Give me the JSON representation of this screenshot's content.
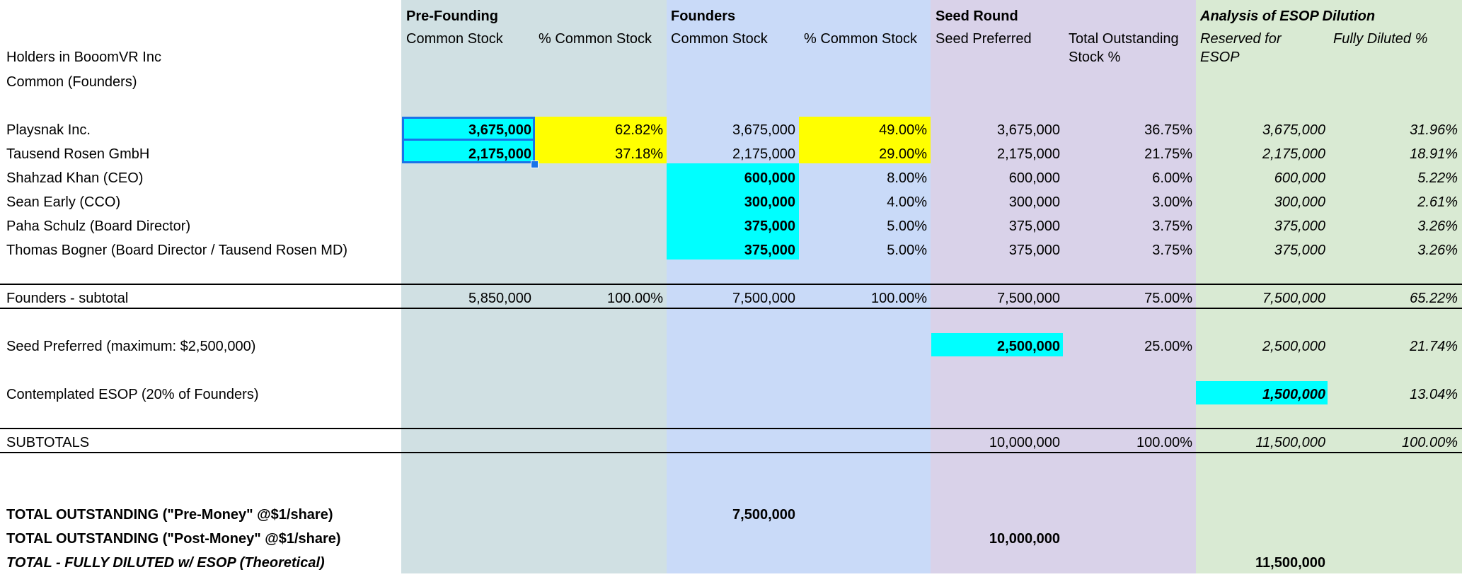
{
  "groups": {
    "pre": "Pre-Founding",
    "founders": "Founders",
    "seed": "Seed Round",
    "esop": "Analysis of ESOP Dilution"
  },
  "subheaders": {
    "pre_stock": "Common Stock",
    "pre_pct": "% Common Stock",
    "fnd_stock": "Common Stock",
    "fnd_pct": "% Common Stock",
    "seed_pref": "Seed Preferred",
    "seed_total_1": "Total Outstanding",
    "seed_total_2": "Stock %",
    "esop_reserved_1": "Reserved for",
    "esop_reserved_2": "ESOP",
    "esop_fd": "Fully Diluted %"
  },
  "labels": {
    "holders": "Holders in BooomVR Inc",
    "common": "Common (Founders)"
  },
  "holders": [
    {
      "name": "Playsnak Inc.",
      "pre_stock": "3,675,000",
      "pre_pct": "62.82%",
      "fnd_stock": "3,675,000",
      "fnd_pct": "49.00%",
      "seed_pref": "3,675,000",
      "seed_total": "36.75%",
      "esop_reserved": "3,675,000",
      "esop_fd": "31.96%"
    },
    {
      "name": "Tausend Rosen GmbH",
      "pre_stock": "2,175,000",
      "pre_pct": "37.18%",
      "fnd_stock": "2,175,000",
      "fnd_pct": "29.00%",
      "seed_pref": "2,175,000",
      "seed_total": "21.75%",
      "esop_reserved": "2,175,000",
      "esop_fd": "18.91%"
    },
    {
      "name": "Shahzad Khan (CEO)",
      "pre_stock": "",
      "pre_pct": "",
      "fnd_stock": "600,000",
      "fnd_pct": "8.00%",
      "seed_pref": "600,000",
      "seed_total": "6.00%",
      "esop_reserved": "600,000",
      "esop_fd": "5.22%"
    },
    {
      "name": "Sean Early (CCO)",
      "pre_stock": "",
      "pre_pct": "",
      "fnd_stock": "300,000",
      "fnd_pct": "4.00%",
      "seed_pref": "300,000",
      "seed_total": "3.00%",
      "esop_reserved": "300,000",
      "esop_fd": "2.61%"
    },
    {
      "name": "Paha Schulz (Board Director)",
      "pre_stock": "",
      "pre_pct": "",
      "fnd_stock": "375,000",
      "fnd_pct": "5.00%",
      "seed_pref": "375,000",
      "seed_total": "3.75%",
      "esop_reserved": "375,000",
      "esop_fd": "3.26%"
    },
    {
      "name": "Thomas Bogner (Board Director / Tausend Rosen MD)",
      "pre_stock": "",
      "pre_pct": "",
      "fnd_stock": "375,000",
      "fnd_pct": "5.00%",
      "seed_pref": "375,000",
      "seed_total": "3.75%",
      "esop_reserved": "375,000",
      "esop_fd": "3.26%"
    }
  ],
  "subtotal": {
    "name": "Founders - subtotal",
    "pre_stock": "5,850,000",
    "pre_pct": "100.00%",
    "fnd_stock": "7,500,000",
    "fnd_pct": "100.00%",
    "seed_pref": "7,500,000",
    "seed_total": "75.00%",
    "esop_reserved": "7,500,000",
    "esop_fd": "65.22%"
  },
  "seed_preferred": {
    "name": "Seed Preferred (maximum: $2,500,000)",
    "seed_pref": "2,500,000",
    "seed_total": "25.00%",
    "esop_reserved": "2,500,000",
    "esop_fd": "21.74%"
  },
  "esop_row": {
    "name": "Contemplated ESOP (20% of Founders)",
    "esop_reserved": "1,500,000",
    "esop_fd": "13.04%"
  },
  "subtotals": {
    "name": "SUBTOTALS",
    "seed_pref": "10,000,000",
    "seed_total": "100.00%",
    "esop_reserved": "11,500,000",
    "esop_fd": "100.00%"
  },
  "totals": {
    "pre_money_label": "TOTAL OUTSTANDING (\"Pre-Money\" @$1/share)",
    "pre_money_value": "7,500,000",
    "post_money_label": "TOTAL OUTSTANDING (\"Post-Money\" @$1/share)",
    "post_money_value": "10,000,000",
    "fully_diluted_label": "TOTAL - FULLY DILUTED w/ ESOP (Theoretical)",
    "fully_diluted_value": "11,500,000"
  },
  "colors": {
    "pre_band": "#d0e0e3",
    "founders_band": "#c9daf8",
    "seed_band": "#d9d2e9",
    "esop_band": "#d9ead3",
    "cyan_highlight": "#00ffff",
    "yellow_highlight": "#ffff00",
    "selection": "#1a73e8"
  }
}
